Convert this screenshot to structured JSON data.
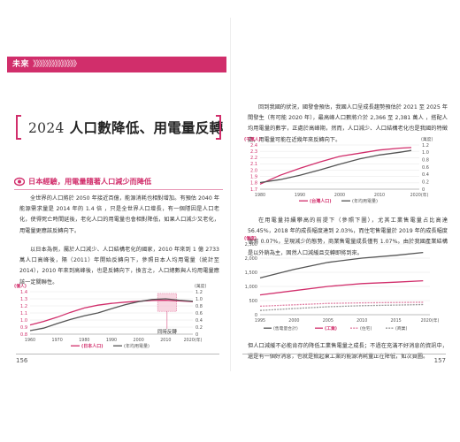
{
  "left_page": {
    "header_label": "未來",
    "header_chevrons": "》》》》》》》》》》》》》》",
    "title_number": "2024",
    "title_text": "人口數降低、用電量反轉",
    "sub_heading": "日本經驗，用電量隨著人口減少而降低",
    "para1": "全世界的人口將於 2050 年接近百億，能源消耗也相對增加。有預估 2040 年能源需求量是 2014 年的 1.4 倍 ，只是全世界人口增長，有一個隱因是人口老化，使得死亡時間延後，老化人口的用電量也會相對降低，如果人口減少又老化，用電量更應該反轉向下。",
    "para2": "以日本為例，屬於人口減少、人口結構老化的國家，2010 年來到 1 億 2733 萬人口高峰後，隔（2011）年開始反轉向下，參照日本人均用電量（統計至 2014），2010 年來到高峰後，也是反轉向下，換言之，人口總數與人均用電量應該一定關聯性。",
    "page_number": "156",
    "chart": {
      "y_left_unit": "(億人)",
      "y_right_unit": "(萬度)",
      "annotation": "同時反轉",
      "legend": [
        "(日本人口)",
        "(年均用電量)"
      ]
    }
  },
  "right_page": {
    "para1": "回到我國的狀況，國發會預估，我國人口呈成長趨勢預估於 2021 至 2025 年間發生（有可能 2020 年），最高峰人口數將介於 2,366 至 2,381 萬人 ，搭配人均用電量的數字，正處於高峰期，然而，人口減少、人口結構老化也是我國的特徵處，用電量可能在近幾年來反轉向下。",
    "para2": "在用電量持續攀高的前提下（參照下圖），尤其工業售電量占比高達 56.45%，2018 年的成長幅度達到 2.03%，而住宅售電量於 2019 年的成長幅度僅有 0.07%，呈現減少的態勢，商業售電量成長僅有 1.07%。由於我國產業結構是以外銷為主，固然人口減緩且交轉即將到來。",
    "para3": "但人口減緩不必能肯存的降低工業售電量之成長；不過在充滿不好消息的資訊中，還是有一個好消息，也就是掀起東工業的能源消耗量正在降低，如次頁圖。",
    "page_number": "157",
    "chart1": {
      "y_left_unit": "(千萬人)",
      "y_right_unit": "(萬度)",
      "legend": [
        "(台灣人口)",
        "(年均用電量)"
      ]
    },
    "chart2": {
      "y_unit": "(億度)",
      "legend": [
        "(售電量合計)",
        "(工業)",
        "(住宅)",
        "(商業)"
      ]
    }
  },
  "chart_data": [
    {
      "type": "line",
      "x": [
        1960,
        1970,
        1980,
        1990,
        2000,
        2010,
        2020
      ],
      "x_tick_labels": [
        "1960",
        "1970",
        "1980",
        "1990",
        "2000",
        "2010",
        "2020(年)"
      ],
      "ylim_left": [
        0.8,
        1.4
      ],
      "y_left_ticks": [
        "1.4",
        "1.3",
        "1.2",
        "1.1",
        "1.0",
        "0.9",
        "0.8"
      ],
      "ylim_right": [
        0,
        1.2
      ],
      "y_right_ticks": [
        "1.2",
        "1.0",
        "0.8",
        "0.6",
        "0.4",
        "0.2",
        "0"
      ],
      "annotation": "同時反轉",
      "series": [
        {
          "name": "(日本人口)",
          "axis": "left",
          "color": "#d12e6b",
          "x": [
            1960,
            1965,
            1970,
            1975,
            1980,
            1985,
            1990,
            1995,
            2000,
            2005,
            2010,
            2015,
            2020
          ],
          "values": [
            0.93,
            0.98,
            1.04,
            1.11,
            1.17,
            1.21,
            1.235,
            1.253,
            1.265,
            1.277,
            1.28,
            1.27,
            1.26
          ]
        },
        {
          "name": "(年均用電量)",
          "axis": "right",
          "color": "#555555",
          "x": [
            1960,
            1965,
            1970,
            1975,
            1980,
            1985,
            1990,
            1995,
            2000,
            2005,
            2010,
            2015,
            2020
          ],
          "values": [
            0.1,
            0.17,
            0.3,
            0.42,
            0.52,
            0.6,
            0.72,
            0.83,
            0.92,
            0.98,
            1.0,
            0.96,
            0.93
          ]
        }
      ]
    },
    {
      "type": "line",
      "x": [
        1980,
        1990,
        2000,
        2010,
        2020
      ],
      "x_tick_labels": [
        "1980",
        "1990",
        "2000",
        "2010",
        "2020(年)"
      ],
      "ylim_left": [
        1.7,
        2.4
      ],
      "y_left_ticks": [
        "2.4",
        "2.3",
        "2.2",
        "2.1",
        "2.0",
        "1.9",
        "1.8",
        "1.7"
      ],
      "ylim_right": [
        0,
        1.2
      ],
      "y_right_ticks": [
        "1.2",
        "1.0",
        "0.8",
        "0.6",
        "0.4",
        "0.2",
        "0"
      ],
      "series": [
        {
          "name": "(台灣人口)",
          "axis": "left",
          "color": "#d12e6b",
          "x": [
            1980,
            1985,
            1990,
            1995,
            2000,
            2005,
            2010,
            2015,
            2018
          ],
          "values": [
            1.78,
            1.92,
            2.03,
            2.13,
            2.22,
            2.27,
            2.32,
            2.35,
            2.36
          ]
        },
        {
          "name": "(年均用電量)",
          "axis": "right",
          "color": "#555555",
          "x": [
            1980,
            1985,
            1990,
            1995,
            2000,
            2005,
            2010,
            2015,
            2018
          ],
          "values": [
            0.18,
            0.26,
            0.38,
            0.52,
            0.68,
            0.82,
            0.93,
            1.0,
            1.05
          ]
        }
      ]
    },
    {
      "type": "line",
      "x": [
        1995,
        2000,
        2005,
        2010,
        2015,
        2020
      ],
      "x_tick_labels": [
        "1995",
        "2000",
        "2005",
        "2010",
        "2015",
        "2020(年)"
      ],
      "ylim": [
        0,
        2500
      ],
      "y_ticks": [
        "2,500",
        "2,000",
        "1,500",
        "1,000",
        "500",
        "0"
      ],
      "series": [
        {
          "name": "(售電量合計)",
          "color": "#555555",
          "x": [
            1995,
            2000,
            2005,
            2010,
            2015,
            2019
          ],
          "values": [
            1300,
            1600,
            1850,
            2000,
            2100,
            2200
          ]
        },
        {
          "name": "(工業)",
          "color": "#d12e6b",
          "x": [
            1995,
            2000,
            2005,
            2010,
            2015,
            2019
          ],
          "values": [
            700,
            850,
            1000,
            1100,
            1150,
            1200
          ]
        },
        {
          "name": "(住宅)",
          "color": "#e07fa3",
          "dashed": true,
          "x": [
            1995,
            2000,
            2005,
            2010,
            2015,
            2019
          ],
          "values": [
            300,
            350,
            400,
            420,
            430,
            440
          ]
        },
        {
          "name": "(商業)",
          "color": "#999999",
          "dashed": true,
          "x": [
            1995,
            2000,
            2005,
            2010,
            2015,
            2019
          ],
          "values": [
            150,
            220,
            280,
            320,
            340,
            360
          ]
        }
      ]
    }
  ]
}
